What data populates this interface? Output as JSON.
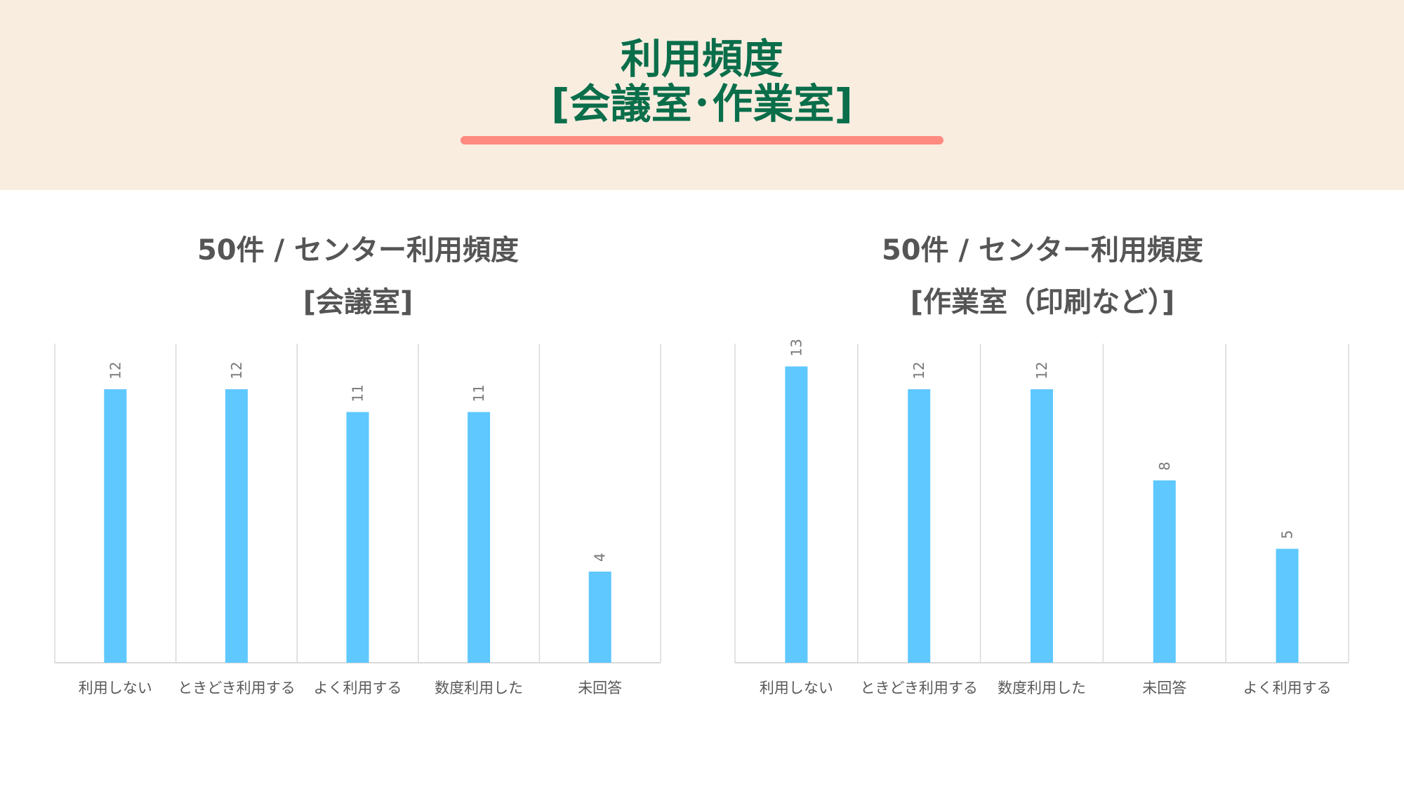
{
  "page": {
    "title_line1": "利用頻度",
    "title_line2": "[会議室･作業室]"
  },
  "colors": {
    "header_bg": "#f9ede0",
    "title": "#0a6e4a",
    "underline": "#ff8a80",
    "bar": "#5ec8ff",
    "label": "#595959",
    "grid": "#d9d9d9"
  },
  "chart_data": [
    {
      "type": "bar",
      "title_line1": "50件 / センター利用頻度",
      "title_line2": "[会議室]",
      "categories": [
        "利用しない",
        "ときどき利用する",
        "よく利用する",
        "数度利用した",
        "未回答"
      ],
      "values": [
        12,
        12,
        11,
        11,
        4
      ],
      "data_labels": [
        "12",
        "12",
        "11",
        "11",
        "4"
      ],
      "ylim": [
        0,
        14
      ],
      "grid": "vertical",
      "legend": "none"
    },
    {
      "type": "bar",
      "title_line1": "50件 / センター利用頻度",
      "title_line2": "[作業室（印刷など）]",
      "categories": [
        "利用しない",
        "ときどき利用する",
        "数度利用した",
        "未回答",
        "よく利用する"
      ],
      "values": [
        13,
        12,
        12,
        8,
        5
      ],
      "data_labels": [
        "13",
        "12",
        "12",
        "8",
        "5"
      ],
      "ylim": [
        0,
        14
      ],
      "grid": "vertical",
      "legend": "none"
    }
  ]
}
